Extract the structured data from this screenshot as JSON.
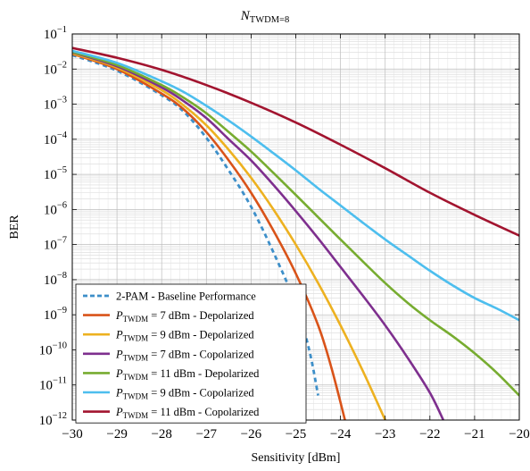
{
  "chart_data": {
    "type": "line",
    "title": {
      "base": "N",
      "sub": "TWDM=8"
    },
    "xlabel": "Sensitivity [dBm]",
    "ylabel": "BER",
    "xlim": [
      -30,
      -20
    ],
    "ylim": [
      1e-12,
      0.1
    ],
    "yscale": "log",
    "grid": true,
    "x_ticks": [
      -30,
      -29,
      -28,
      -27,
      -26,
      -25,
      -24,
      -23,
      -22,
      -21,
      -20
    ],
    "x_tick_labels": [
      "−30",
      "−29",
      "−28",
      "−27",
      "−26",
      "−25",
      "−24",
      "−23",
      "−22",
      "−21",
      "−20"
    ],
    "y_ticks": [
      -12,
      -11,
      -10,
      -9,
      -8,
      -7,
      -6,
      -5,
      -4,
      -3,
      -2,
      -1
    ],
    "y_tick_base": "10",
    "y_tick_exponents": [
      "−12",
      "−11",
      "−10",
      "−9",
      "−8",
      "−7",
      "−6",
      "−5",
      "−4",
      "−3",
      "−2",
      "−1"
    ],
    "legend_position": "bottom-left",
    "series": [
      {
        "name": "2-PAM - Baseline Performance",
        "label_plain": "2-PAM - Baseline Performance",
        "color": "#3d8fc9",
        "dashed": true,
        "x": [
          -30,
          -29,
          -28,
          -27.5,
          -27,
          -26.5,
          -26,
          -25.5,
          -25,
          -24.7,
          -24.5
        ],
        "y": [
          0.025,
          0.009,
          0.0018,
          0.0006,
          0.00011,
          1.3e-05,
          1.2e-06,
          6e-08,
          2e-09,
          1e-10,
          5e-12
        ]
      },
      {
        "name": "P TWDM = 7 dBm - Depolarized",
        "label_pre": "P",
        "label_sub": "TWDM",
        "label_post": " = 7 dBm - Depolarized",
        "color": "#d95319",
        "dashed": false,
        "x": [
          -30,
          -29,
          -28,
          -27.5,
          -27,
          -26.5,
          -26,
          -25.5,
          -25,
          -24.5,
          -24.2,
          -23.9
        ],
        "y": [
          0.027,
          0.01,
          0.002,
          0.0007,
          0.00016,
          2.5e-05,
          3e-06,
          2.5e-07,
          1.5e-08,
          5e-10,
          3e-11,
          1e-12
        ]
      },
      {
        "name": "P TWDM = 9 dBm - Depolarized",
        "label_pre": "P",
        "label_sub": "TWDM",
        "label_post": " = 9 dBm - Depolarized",
        "color": "#edb120",
        "dashed": false,
        "x": [
          -30,
          -29,
          -28,
          -27.5,
          -27,
          -26.5,
          -26,
          -25.5,
          -25,
          -24.5,
          -24,
          -23.5,
          -23
        ],
        "y": [
          0.028,
          0.011,
          0.0025,
          0.0009,
          0.00025,
          5e-05,
          8e-06,
          1e-06,
          1e-07,
          8e-09,
          5e-10,
          2.5e-11,
          1e-12
        ]
      },
      {
        "name": "P TWDM = 7 dBm - Copolarized",
        "label_pre": "P",
        "label_sub": "TWDM",
        "label_post": " = 7 dBm - Copolarized",
        "color": "#7e2f8e",
        "dashed": false,
        "x": [
          -30,
          -29,
          -28,
          -27.5,
          -27,
          -26.5,
          -26,
          -25.5,
          -25,
          -24.5,
          -24,
          -23.5,
          -23,
          -22.5,
          -22,
          -21.7
        ],
        "y": [
          0.03,
          0.012,
          0.003,
          0.0012,
          0.0004,
          0.0001,
          2.5e-05,
          5e-06,
          9e-07,
          1.5e-07,
          2.3e-08,
          3.5e-09,
          5e-10,
          6e-11,
          6e-12,
          1e-12
        ]
      },
      {
        "name": "P TWDM = 11 dBm - Depolarized",
        "label_pre": "P",
        "label_sub": "TWDM",
        "label_post": " = 11 dBm - Depolarized",
        "color": "#77ac30",
        "dashed": false,
        "x": [
          -30,
          -29,
          -28,
          -27.5,
          -27,
          -26.5,
          -26,
          -25.5,
          -25,
          -24.5,
          -24,
          -23.5,
          -23,
          -22.5,
          -22,
          -21.5,
          -21,
          -20.5,
          -20
        ],
        "y": [
          0.031,
          0.013,
          0.0035,
          0.0015,
          0.00055,
          0.00016,
          4.5e-05,
          1.1e-05,
          2.6e-06,
          6e-07,
          1.4e-07,
          3.3e-08,
          8e-09,
          2.2e-09,
          7e-10,
          2.5e-10,
          8e-11,
          2.2e-11,
          5e-12
        ]
      },
      {
        "name": "P TWDM = 9 dBm - Copolarized",
        "label_pre": "P",
        "label_sub": "TWDM",
        "label_post": " = 9 dBm - Copolarized",
        "color": "#4dbeee",
        "dashed": false,
        "x": [
          -30,
          -29,
          -28,
          -27.5,
          -27,
          -26.5,
          -26,
          -25.5,
          -25,
          -24.5,
          -24,
          -23.5,
          -23,
          -22.5,
          -22,
          -21.5,
          -21,
          -20.5,
          -20
        ],
        "y": [
          0.033,
          0.015,
          0.0045,
          0.0022,
          0.0009,
          0.00034,
          0.00012,
          4e-05,
          1.3e-05,
          4e-06,
          1.3e-06,
          4.2e-07,
          1.4e-07,
          5e-08,
          1.8e-08,
          7e-09,
          3e-09,
          1.5e-09,
          7e-10
        ]
      },
      {
        "name": "P TWDM = 11 dBm - Copolarized",
        "label_pre": "P",
        "label_sub": "TWDM",
        "label_post": " = 11 dBm - Copolarized",
        "color": "#a2142f",
        "dashed": false,
        "x": [
          -30,
          -29,
          -28,
          -27,
          -26,
          -25,
          -24,
          -23,
          -22,
          -21,
          -20
        ],
        "y": [
          0.04,
          0.021,
          0.0095,
          0.0035,
          0.0011,
          0.0003,
          7e-05,
          1.5e-05,
          3e-06,
          7e-07,
          1.8e-07
        ]
      }
    ]
  }
}
